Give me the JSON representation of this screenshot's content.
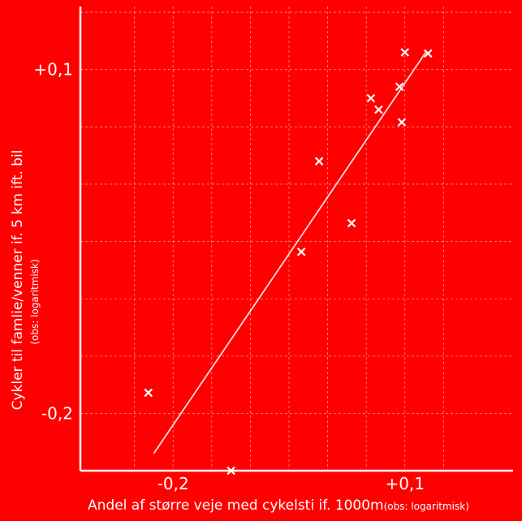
{
  "chart_data": {
    "type": "scatter",
    "title": "",
    "xlabel": "Andel af større veje med cykelsti if. 1000m",
    "xlabel_note": "(obs: logaritmisk)",
    "ylabel": "Cykler til famlie/venner if. 5 km ift. bil",
    "ylabel_note": "(obs: logaritmisk)",
    "x_scale": "log",
    "y_scale": "log",
    "xlim": [
      -0.32,
      0.24
    ],
    "ylim": [
      -0.25,
      0.155
    ],
    "x_ticks": [
      {
        "value": -0.2,
        "label": "-0,2"
      },
      {
        "value": 0.1,
        "label": "+0,1"
      }
    ],
    "y_ticks": [
      {
        "value": 0.1,
        "label": "+0,1"
      },
      {
        "value": -0.2,
        "label": "-0,2"
      }
    ],
    "x_gridlines": [
      -0.25,
      -0.2,
      -0.15,
      -0.1,
      -0.05,
      0.0,
      0.05,
      0.1,
      0.15
    ],
    "y_gridlines": [
      -0.25,
      -0.2,
      -0.15,
      -0.1,
      -0.05,
      0.0,
      0.05,
      0.1,
      0.15
    ],
    "grid": true,
    "marker": "x",
    "marker_color": "#ffffff",
    "background": "#ff0000",
    "points": [
      {
        "x": -0.232,
        "y": -0.182
      },
      {
        "x": -0.125,
        "y": -0.25
      },
      {
        "x": -0.034,
        "y": -0.059
      },
      {
        "x": -0.011,
        "y": 0.02
      },
      {
        "x": 0.031,
        "y": -0.034
      },
      {
        "x": 0.056,
        "y": 0.075
      },
      {
        "x": 0.066,
        "y": 0.065
      },
      {
        "x": 0.093,
        "y": 0.085
      },
      {
        "x": 0.096,
        "y": 0.054
      },
      {
        "x": 0.1,
        "y": 0.115
      },
      {
        "x": 0.13,
        "y": 0.114
      }
    ],
    "trendline": {
      "x": [
        -0.225,
        0.127
      ],
      "y": [
        -0.235,
        0.115
      ]
    }
  }
}
